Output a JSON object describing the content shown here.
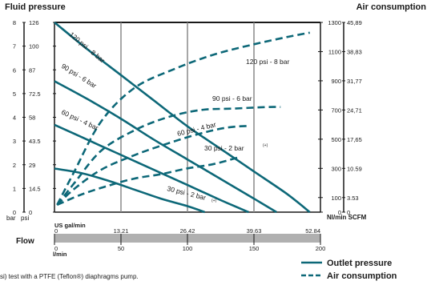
{
  "titles": {
    "left": "Fluid pressure",
    "right": "Air consumption",
    "flow": "Flow"
  },
  "axes": {
    "left_unit_bar": "bar",
    "left_unit_psi": "psi",
    "left_bar_ticks": [
      "8",
      "7",
      "6",
      "5",
      "4",
      "3",
      "2",
      "1",
      "0"
    ],
    "left_psi_ticks": [
      "126",
      "100",
      "87",
      "72.5",
      "58",
      "43.5",
      "29",
      "14.5",
      "0"
    ],
    "right_nl_ticks": [
      "1300",
      "1100",
      "900",
      "700",
      "500",
      "300",
      "100",
      "0"
    ],
    "right_scfm_ticks": [
      "45,89",
      "38,83",
      "31,77",
      "24,71",
      "17,65",
      "10.59",
      "3.53",
      "0"
    ],
    "right_unit": "Nl/min SCFM",
    "x_us_label": "US gal/min",
    "x_us_ticks": [
      "0",
      "13.21",
      "26.42",
      "39.63",
      "52.84"
    ],
    "x_l_label": "l/min",
    "x_l_ticks": [
      "0",
      "50",
      "100",
      "150",
      "200"
    ]
  },
  "curve_labels": {
    "outlet_120": "120 psi - 8 bar",
    "outlet_90": "90 psi - 6 bar",
    "outlet_60": "60 psi - 4 bar",
    "outlet_30": "30 psi - 2 bar",
    "outlet_30_note": "(+)",
    "air_120": "120 psi - 8 bar",
    "air_90": "90 psi - 6 bar",
    "air_60": "60 psi - 4 bar",
    "air_30": "30 psi - 2 bar",
    "air_30_note": "(+)"
  },
  "legend": {
    "outlet": "Outlet pressure",
    "air": "Air consumption"
  },
  "footnote": "si) test with a PTFE (Teflon®) diaphragms pump.",
  "colors": {
    "curve": "#0d6878",
    "grid": "#8a8a8a",
    "frame": "#1a1a1a"
  },
  "chart_data": {
    "type": "line",
    "x_unit": "l/min",
    "xlim": [
      0,
      200
    ],
    "y_left_unit": "psi",
    "ylim_left": [
      0,
      126
    ],
    "y_right_unit": "Nl/min",
    "ylim_right": [
      0,
      1300
    ],
    "series": [
      {
        "name": "120 psi - 8 bar",
        "kind": "outlet",
        "axis": "left",
        "x": [
          0,
          25,
          50,
          75,
          100,
          125,
          150,
          175,
          192
        ],
        "y": [
          126,
          108,
          91,
          74,
          57,
          42,
          27,
          12,
          0
        ]
      },
      {
        "name": "90 psi - 6 bar",
        "kind": "outlet",
        "axis": "left",
        "x": [
          0,
          25,
          50,
          75,
          100,
          125,
          150,
          167
        ],
        "y": [
          87,
          75,
          62,
          48,
          35,
          22,
          9,
          0
        ]
      },
      {
        "name": "60 psi - 4 bar",
        "kind": "outlet",
        "axis": "left",
        "x": [
          0,
          25,
          50,
          75,
          100,
          125,
          146
        ],
        "y": [
          58,
          48,
          38,
          28,
          18,
          8,
          0
        ]
      },
      {
        "name": "30 psi - 2 bar",
        "kind": "outlet",
        "axis": "left",
        "x": [
          0,
          20,
          40,
          60,
          80,
          100,
          113
        ],
        "y": [
          29,
          26,
          21,
          15,
          9,
          4,
          0
        ]
      },
      {
        "name": "120 psi - 8 bar",
        "kind": "air",
        "axis": "right",
        "x": [
          2,
          15,
          35,
          60,
          90,
          120,
          150,
          175,
          192
        ],
        "y": [
          50,
          280,
          620,
          850,
          980,
          1080,
          1150,
          1200,
          1230
        ]
      },
      {
        "name": "90 psi - 6 bar",
        "kind": "air",
        "axis": "right",
        "x": [
          2,
          15,
          35,
          60,
          85,
          110,
          135,
          160,
          170
        ],
        "y": [
          50,
          200,
          420,
          560,
          650,
          700,
          710,
          720,
          720
        ]
      },
      {
        "name": "60 psi - 4 bar",
        "kind": "air",
        "axis": "right",
        "x": [
          2,
          15,
          35,
          60,
          85,
          110,
          130,
          145
        ],
        "y": [
          50,
          160,
          290,
          390,
          470,
          540,
          580,
          590
        ]
      },
      {
        "name": "30 psi - 2 bar",
        "kind": "air",
        "axis": "right",
        "x": [
          2,
          20,
          40,
          60,
          80,
          100,
          120,
          140
        ],
        "y": [
          50,
          120,
          180,
          230,
          260,
          300,
          330,
          380
        ]
      }
    ]
  }
}
